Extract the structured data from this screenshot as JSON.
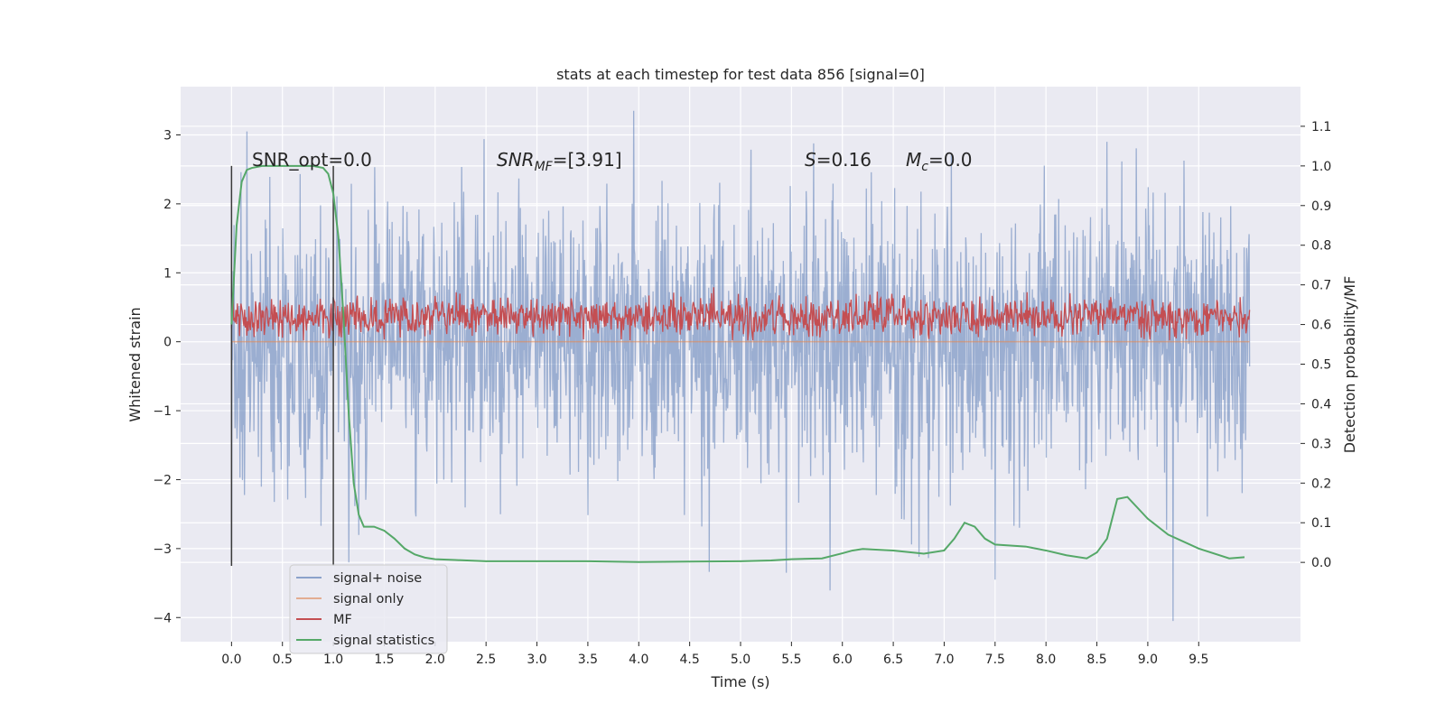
{
  "chart_data": {
    "type": "line",
    "title": "stats at each timestep for test data 856 [signal=0]",
    "xlabel": "Time (s)",
    "ylabel": "Whitened strain",
    "ylabel_right": "Detection probability/MF",
    "xlim": [
      -0.5,
      10.5
    ],
    "ylim": [
      -4.35,
      3.7
    ],
    "ylim_right": [
      -0.2,
      1.2
    ],
    "grid": true,
    "legend_position": "lower-left",
    "x_ticks": [
      0.0,
      0.5,
      1.0,
      1.5,
      2.0,
      2.5,
      3.0,
      3.5,
      4.0,
      4.5,
      5.0,
      5.5,
      6.0,
      6.5,
      7.0,
      7.5,
      8.0,
      8.5,
      9.0,
      9.5
    ],
    "x_tick_labels": [
      "0.0",
      "0.5",
      "1.0",
      "1.5",
      "2.0",
      "2.5",
      "3.0",
      "3.5",
      "4.0",
      "4.5",
      "5.0",
      "5.5",
      "6.0",
      "6.5",
      "7.0",
      "7.5",
      "8.0",
      "8.5",
      "9.0",
      "9.5"
    ],
    "y_ticks": [
      3,
      2,
      1,
      0,
      -1,
      -2,
      -3,
      -4
    ],
    "y_tick_labels": [
      "3",
      "2",
      "1",
      "0",
      "−1",
      "−2",
      "−3",
      "−4"
    ],
    "y_ticks_right": [
      1.1,
      1.0,
      0.9,
      0.8,
      0.7,
      0.6,
      0.5,
      0.4,
      0.3,
      0.2,
      0.1,
      0.0
    ],
    "y_tick_labels_right": [
      "1.1",
      "1.0",
      "0.9",
      "0.8",
      "0.7",
      "0.6",
      "0.5",
      "0.4",
      "0.3",
      "0.2",
      "0.1",
      "0.0"
    ],
    "annotations": {
      "snr_opt": "SNR_opt=0.0",
      "snr_mf_main": "SNR",
      "snr_mf_sub": "MF",
      "snr_mf_value": "=[3.91]",
      "s_sym": "S",
      "s_value": "=0.16",
      "mc_sym": "M",
      "mc_sub": "c",
      "mc_value": "=0.0"
    },
    "series": [
      {
        "name": "signal+ noise",
        "color": "#4c72b0",
        "opacity": 0.5,
        "axis": "left",
        "noise_model": {
          "t_start": 0.0,
          "t_end": 10.0,
          "samples": 2048,
          "std": 1.0,
          "min": -4.05,
          "max": 3.35
        },
        "values_note_points": [
          {
            "x": 0.0,
            "y": 2.5
          },
          {
            "x": 0.0,
            "y": -3.2
          },
          {
            "x": 0.15,
            "y": 3.05
          },
          {
            "x": 1.15,
            "y": -3.2
          },
          {
            "x": 3.95,
            "y": 3.35
          },
          {
            "x": 5.45,
            "y": -3.35
          },
          {
            "x": 7.5,
            "y": 3.2
          },
          {
            "x": 7.5,
            "y": -3.45
          },
          {
            "x": 9.25,
            "y": -4.05
          },
          {
            "x": 8.6,
            "y": 2.9
          }
        ]
      },
      {
        "name": "signal only",
        "color": "#dd8452",
        "axis": "left",
        "x": [
          0.0,
          10.0
        ],
        "values": [
          0.0,
          0.0
        ]
      },
      {
        "name": "MF",
        "color": "#c44e52",
        "axis": "right",
        "band": {
          "t_start": 0.0,
          "t_end": 10.0,
          "min": 0.56,
          "max": 0.74,
          "mean": 0.62
        }
      },
      {
        "name": "signal statistics",
        "color": "#55a868",
        "axis": "right",
        "x": [
          0.0,
          0.05,
          0.1,
          0.15,
          0.2,
          0.3,
          0.5,
          0.8,
          0.9,
          0.95,
          1.0,
          1.05,
          1.1,
          1.15,
          1.2,
          1.25,
          1.3,
          1.4,
          1.5,
          1.6,
          1.7,
          1.8,
          1.9,
          2.0,
          2.2,
          2.5,
          3.0,
          3.5,
          4.0,
          4.5,
          5.0,
          5.3,
          5.5,
          5.8,
          6.0,
          6.1,
          6.2,
          6.5,
          6.8,
          7.0,
          7.1,
          7.2,
          7.3,
          7.4,
          7.5,
          7.8,
          8.0,
          8.2,
          8.4,
          8.5,
          8.6,
          8.7,
          8.8,
          9.0,
          9.2,
          9.5,
          9.8,
          9.95
        ],
        "values": [
          0.6,
          0.85,
          0.96,
          0.99,
          0.995,
          1.0,
          1.0,
          1.0,
          0.995,
          0.98,
          0.93,
          0.82,
          0.62,
          0.38,
          0.2,
          0.12,
          0.09,
          0.09,
          0.08,
          0.06,
          0.035,
          0.02,
          0.012,
          0.008,
          0.006,
          0.003,
          0.003,
          0.003,
          0.001,
          0.002,
          0.003,
          0.005,
          0.008,
          0.01,
          0.023,
          0.03,
          0.034,
          0.03,
          0.022,
          0.03,
          0.06,
          0.1,
          0.09,
          0.06,
          0.045,
          0.04,
          0.03,
          0.018,
          0.01,
          0.025,
          0.06,
          0.16,
          0.165,
          0.11,
          0.07,
          0.035,
          0.01,
          0.013
        ]
      }
    ],
    "vlines": [
      0.0,
      1.0
    ],
    "vline_range_left": [
      -3.25,
      2.55
    ]
  },
  "legend": {
    "items": [
      {
        "label": "signal+ noise",
        "color": "#4c72b0"
      },
      {
        "label": "signal only",
        "color": "#dd8452"
      },
      {
        "label": "MF",
        "color": "#c44e52"
      },
      {
        "label": "signal statistics",
        "color": "#55a868"
      }
    ]
  },
  "colors": {
    "axes_bg": "#eaeaf2",
    "grid": "#ffffff",
    "text": "#262626"
  }
}
